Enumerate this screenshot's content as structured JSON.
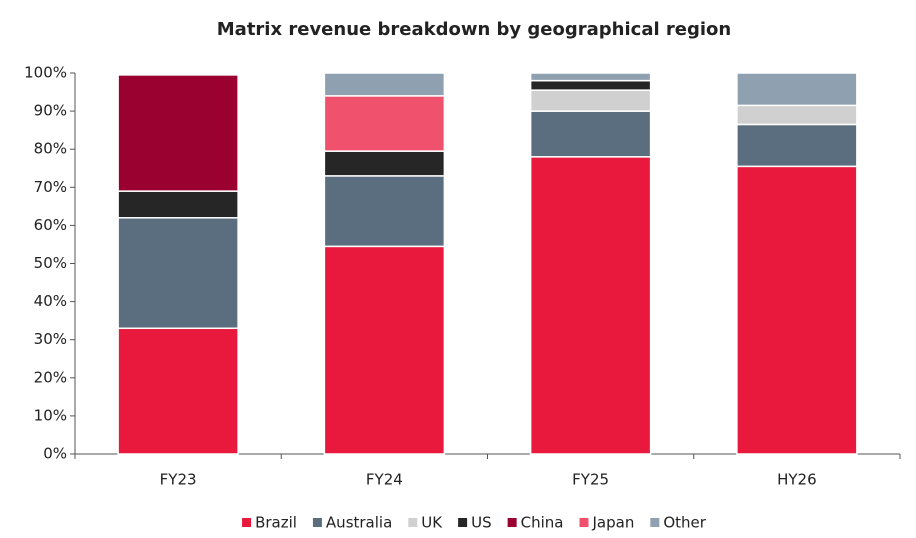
{
  "chart_data": {
    "type": "stacked_bar",
    "title": "Matrix revenue breakdown by geographical region",
    "categories": [
      "FY23",
      "FY24",
      "FY25",
      "HY26"
    ],
    "series": [
      {
        "name": "Brazil",
        "color": "#e8193c",
        "values": [
          33,
          54.5,
          78,
          75.5
        ]
      },
      {
        "name": "Australia",
        "color": "#5b6e80",
        "values": [
          29,
          18.5,
          12,
          11
        ]
      },
      {
        "name": "UK",
        "color": "#d0d0d0",
        "values": [
          0,
          0,
          5.5,
          5
        ]
      },
      {
        "name": "US",
        "color": "#262626",
        "values": [
          7,
          6.5,
          2.5,
          0
        ]
      },
      {
        "name": "China",
        "color": "#9a0030",
        "values": [
          30.5,
          0,
          0,
          0
        ]
      },
      {
        "name": "Japan",
        "color": "#f0526e",
        "values": [
          0,
          14.5,
          0,
          0
        ]
      },
      {
        "name": "Other",
        "color": "#8fa0b0",
        "values": [
          0,
          6,
          2,
          8.5
        ]
      }
    ],
    "ylim": [
      0,
      100
    ],
    "yticks": [
      {
        "value": 0,
        "label": "0%"
      },
      {
        "value": 10,
        "label": "10%"
      },
      {
        "value": 20,
        "label": "20%"
      },
      {
        "value": 30,
        "label": "30%"
      },
      {
        "value": 40,
        "label": "40%"
      },
      {
        "value": 50,
        "label": "50%"
      },
      {
        "value": 60,
        "label": "60%"
      },
      {
        "value": 70,
        "label": "70%"
      },
      {
        "value": 80,
        "label": "80%"
      },
      {
        "value": 90,
        "label": "90%"
      },
      {
        "value": 100,
        "label": "100%"
      }
    ],
    "legend": "bottom"
  }
}
